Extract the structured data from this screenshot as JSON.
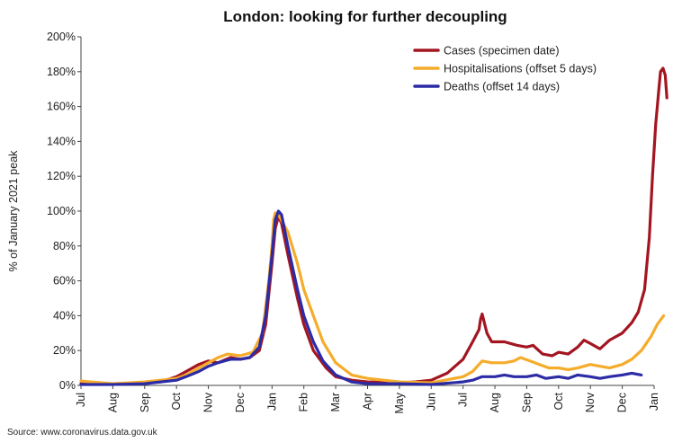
{
  "chart_data": {
    "type": "line",
    "title": "London: looking for further decoupling",
    "xlabel": "",
    "ylabel": "% of January 2021 peak",
    "source": "Source: www.coronavirus.data.gov.uk",
    "ylim": [
      0,
      200
    ],
    "y_ticks": [
      "0%",
      "20%",
      "40%",
      "60%",
      "80%",
      "100%",
      "120%",
      "140%",
      "160%",
      "180%",
      "200%"
    ],
    "x_ticks": [
      "Jul",
      "Aug",
      "Sep",
      "Oct",
      "Nov",
      "Dec",
      "Jan",
      "Feb",
      "Mar",
      "Apr",
      "May",
      "Jun",
      "Jul",
      "Aug",
      "Sep",
      "Oct",
      "Nov",
      "Dec",
      "Jan"
    ],
    "x_unit": "month index (0 = Jul 2020, 18 = Jan 2022)",
    "legend_position": "top-right",
    "series": [
      {
        "name": "Cases (specimen date)",
        "color": "#a31621",
        "points": [
          [
            0,
            1
          ],
          [
            1,
            1
          ],
          [
            2,
            1.5
          ],
          [
            2.5,
            2
          ],
          [
            3,
            5
          ],
          [
            3.3,
            8
          ],
          [
            3.7,
            12
          ],
          [
            4,
            14
          ],
          [
            4.3,
            13
          ],
          [
            4.7,
            16
          ],
          [
            5,
            15
          ],
          [
            5.3,
            16
          ],
          [
            5.6,
            20
          ],
          [
            5.8,
            35
          ],
          [
            6.0,
            70
          ],
          [
            6.1,
            90
          ],
          [
            6.2,
            97
          ],
          [
            6.3,
            93
          ],
          [
            6.5,
            75
          ],
          [
            6.8,
            50
          ],
          [
            7,
            35
          ],
          [
            7.3,
            20
          ],
          [
            7.7,
            10
          ],
          [
            8,
            5
          ],
          [
            8.5,
            3
          ],
          [
            9,
            2
          ],
          [
            10,
            1.5
          ],
          [
            10.5,
            2
          ],
          [
            11,
            3
          ],
          [
            11.5,
            7
          ],
          [
            12,
            15
          ],
          [
            12.3,
            25
          ],
          [
            12.5,
            32
          ],
          [
            12.55,
            38
          ],
          [
            12.6,
            41
          ],
          [
            12.75,
            30
          ],
          [
            12.9,
            25
          ],
          [
            13.3,
            25
          ],
          [
            13.7,
            23
          ],
          [
            14,
            22
          ],
          [
            14.2,
            23
          ],
          [
            14.5,
            18
          ],
          [
            14.8,
            17
          ],
          [
            15,
            19
          ],
          [
            15.3,
            18
          ],
          [
            15.6,
            22
          ],
          [
            15.8,
            26
          ],
          [
            16,
            24
          ],
          [
            16.3,
            21
          ],
          [
            16.6,
            26
          ],
          [
            17,
            30
          ],
          [
            17.3,
            36
          ],
          [
            17.5,
            42
          ],
          [
            17.7,
            55
          ],
          [
            17.85,
            85
          ],
          [
            17.95,
            120
          ],
          [
            18.05,
            150
          ],
          [
            18.15,
            170
          ],
          [
            18.2,
            180
          ],
          [
            18.28,
            182
          ],
          [
            18.35,
            178
          ],
          [
            18.4,
            165
          ]
        ]
      },
      {
        "name": "Hospitalisations (offset 5 days)",
        "color": "#f5ac2b",
        "points": [
          [
            0,
            2.5
          ],
          [
            0.3,
            2
          ],
          [
            1,
            1
          ],
          [
            2,
            2
          ],
          [
            2.5,
            3
          ],
          [
            3,
            4
          ],
          [
            3.3,
            6
          ],
          [
            3.7,
            10
          ],
          [
            4,
            13
          ],
          [
            4.3,
            16
          ],
          [
            4.6,
            18
          ],
          [
            5,
            17
          ],
          [
            5.4,
            19
          ],
          [
            5.7,
            30
          ],
          [
            5.9,
            60
          ],
          [
            6.0,
            80
          ],
          [
            6.05,
            95
          ],
          [
            6.1,
            99
          ],
          [
            6.2,
            98
          ],
          [
            6.5,
            88
          ],
          [
            6.8,
            70
          ],
          [
            7,
            55
          ],
          [
            7.3,
            40
          ],
          [
            7.6,
            25
          ],
          [
            8,
            13
          ],
          [
            8.5,
            6
          ],
          [
            9,
            4
          ],
          [
            10,
            2
          ],
          [
            11,
            1.5
          ],
          [
            12,
            5
          ],
          [
            12.3,
            8
          ],
          [
            12.6,
            14
          ],
          [
            12.9,
            13
          ],
          [
            13.3,
            13
          ],
          [
            13.6,
            14
          ],
          [
            13.8,
            16
          ],
          [
            14.1,
            14
          ],
          [
            14.4,
            12
          ],
          [
            14.7,
            10
          ],
          [
            15,
            10
          ],
          [
            15.3,
            9
          ],
          [
            15.6,
            10
          ],
          [
            16,
            12
          ],
          [
            16.3,
            11
          ],
          [
            16.6,
            10
          ],
          [
            17,
            12
          ],
          [
            17.3,
            15
          ],
          [
            17.6,
            20
          ],
          [
            17.9,
            28
          ],
          [
            18.1,
            35
          ],
          [
            18.3,
            40
          ]
        ]
      },
      {
        "name": "Deaths (offset 14 days)",
        "color": "#2c2ba6",
        "points": [
          [
            0,
            0.5
          ],
          [
            1,
            0.5
          ],
          [
            2,
            1
          ],
          [
            2.5,
            2
          ],
          [
            3,
            3
          ],
          [
            3.3,
            5
          ],
          [
            3.7,
            8
          ],
          [
            4,
            11
          ],
          [
            4.3,
            13
          ],
          [
            4.7,
            15
          ],
          [
            5,
            15
          ],
          [
            5.3,
            16
          ],
          [
            5.6,
            22
          ],
          [
            5.8,
            40
          ],
          [
            6.0,
            75
          ],
          [
            6.1,
            95
          ],
          [
            6.2,
            100
          ],
          [
            6.3,
            98
          ],
          [
            6.5,
            80
          ],
          [
            6.8,
            55
          ],
          [
            7,
            40
          ],
          [
            7.3,
            25
          ],
          [
            7.6,
            14
          ],
          [
            8,
            6
          ],
          [
            8.5,
            2
          ],
          [
            9,
            1
          ],
          [
            10,
            1
          ],
          [
            11,
            0.5
          ],
          [
            12,
            2
          ],
          [
            12.3,
            3
          ],
          [
            12.6,
            5
          ],
          [
            13,
            5
          ],
          [
            13.3,
            6
          ],
          [
            13.6,
            5
          ],
          [
            14,
            5
          ],
          [
            14.3,
            6
          ],
          [
            14.6,
            4
          ],
          [
            15,
            5
          ],
          [
            15.3,
            4
          ],
          [
            15.6,
            6
          ],
          [
            16,
            5
          ],
          [
            16.3,
            4
          ],
          [
            16.6,
            5
          ],
          [
            17,
            6
          ],
          [
            17.3,
            7
          ],
          [
            17.6,
            6
          ]
        ]
      }
    ]
  }
}
